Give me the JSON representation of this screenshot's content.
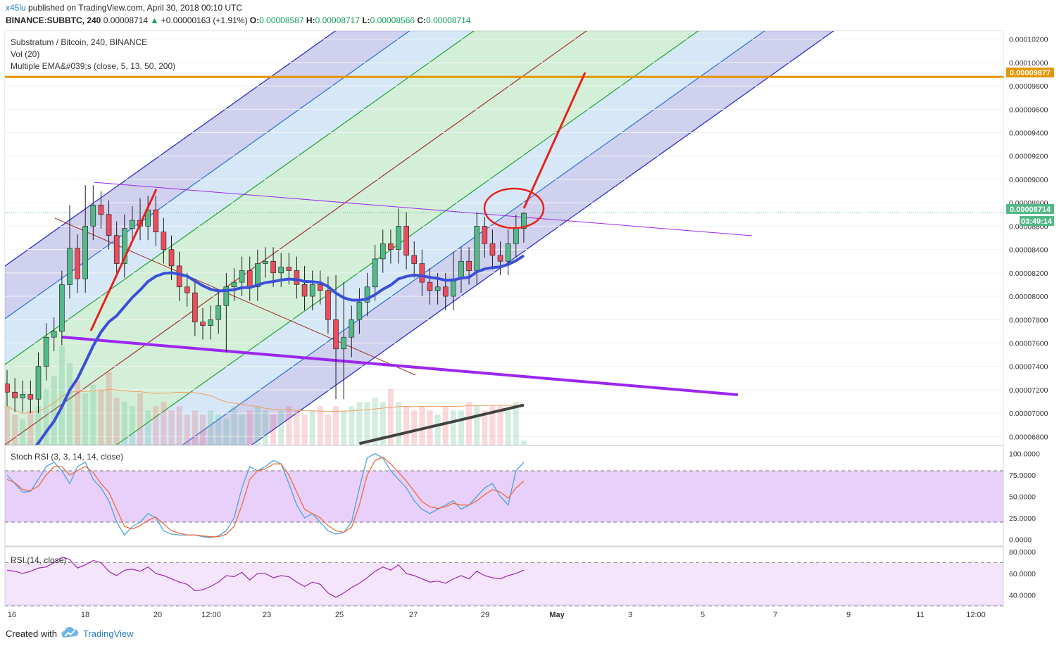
{
  "header": {
    "author": "x45lu",
    "published": "published on TradingView.com, April 30, 2018 00:10 UTC",
    "symbol": "BINANCE:SUBBTC, 240",
    "last": "0.00008714",
    "change": "+0.00000163 (+1.91%)",
    "o_label": "O:",
    "o": "0.00008587",
    "h_label": "H:",
    "h": "0.00008717",
    "l_label": "L:",
    "l": "0.00008566",
    "c_label": "C:",
    "c": "0.00008714"
  },
  "legend": {
    "title": "Substratum / Bitcoin, 240, BINANCE",
    "vol": "Vol (20)",
    "ema": "Multiple EMA&#039;s (close, 5, 13, 50, 200)",
    "stoch": "Stoch RSI (3, 3, 14, 14, close)",
    "rsi": "RSI (14, close)"
  },
  "price_labels": {
    "target": "0.00009877",
    "current": "0.00008714",
    "countdown": "03:49:14"
  },
  "footer": {
    "created": "Created with",
    "brand": "TradingView"
  },
  "colors": {
    "bull": "#53b987",
    "bear": "#eb4d5c",
    "ema": "#3b4fd8",
    "ema200": "#424242",
    "target": "#e69500",
    "annotation": "#e8231b",
    "trend": "#9c27f0"
  },
  "chart_data": [
    {
      "type": "candlestick",
      "title": "Substratum / Bitcoin, 240, BINANCE",
      "x_ticks": [
        "16",
        "18",
        "20",
        "12:00",
        "23",
        "25",
        "27",
        "29",
        "May",
        "3",
        "5",
        "7",
        "9",
        "11",
        "12:00"
      ],
      "y_ticks": [
        "0.00006800",
        "0.00007000",
        "0.00007200",
        "0.00007400",
        "0.00007600",
        "0.00007800",
        "0.00008000",
        "0.00008200",
        "0.00008400",
        "0.00008600",
        "0.00008800",
        "0.00009000",
        "0.00009200",
        "0.00009400",
        "0.00009600",
        "0.00009800",
        "0.00010000",
        "0.00010200"
      ],
      "ylim": [
        6.73e-05,
        0.0001027
      ],
      "closes": [
        7.18e-05,
        7.13e-05,
        7.16e-05,
        7.12e-05,
        7.4e-05,
        7.65e-05,
        7.7e-05,
        8.1e-05,
        8.41e-05,
        8.15e-05,
        8.6e-05,
        8.78e-05,
        8.7e-05,
        8.52e-05,
        8.28e-05,
        8.58e-05,
        8.65e-05,
        8.6e-05,
        8.74e-05,
        8.55e-05,
        8.4e-05,
        8.26e-05,
        8.08e-05,
        8.03e-05,
        7.78e-05,
        7.75e-05,
        7.8e-05,
        7.92e-05,
        8.08e-05,
        8.12e-05,
        8.22e-05,
        8.08e-05,
        8.28e-05,
        8.3e-05,
        8.2e-05,
        8.25e-05,
        8.22e-05,
        8.1e-05,
        8e-05,
        8.1e-05,
        8.05e-05,
        7.8e-05,
        7.55e-05,
        7.65e-05,
        7.8e-05,
        7.95e-05,
        8.08e-05,
        8.32e-05,
        8.45e-05,
        8.4e-05,
        8.6e-05,
        8.35e-05,
        8.28e-05,
        8.12e-05,
        8.05e-05,
        8.08e-05,
        8e-05,
        8.15e-05,
        8.3e-05,
        8.22e-05,
        8.6e-05,
        8.45e-05,
        8.35e-05,
        8.3e-05,
        8.45e-05,
        8.58e-05,
        8.71e-05
      ],
      "highs_extra": {
        "8": 8.78e-05,
        "10": 8.95e-05,
        "11": 8.95e-05,
        "17": 8.84e-05,
        "38": 8.26e-05,
        "42": 8.18e-05,
        "43": 8.12e-05,
        "50": 8.75e-05,
        "57": 8.38e-05,
        "61": 8.68e-05,
        "66": 8.72e-05
      },
      "lows_extra": {
        "42": 7.12e-05,
        "43": 7.12e-05,
        "44": 7.48e-05,
        "28": 7.52e-05
      },
      "open_first": 7.25e-05,
      "volumes": [
        0.9,
        0.7,
        0.6,
        0.8,
        0.9,
        1.3,
        1.6,
        2.3,
        1.9,
        1.5,
        1.2,
        1.4,
        1.3,
        1.7,
        1.1,
        1.0,
        0.9,
        1.2,
        0.8,
        0.9,
        1.0,
        0.8,
        0.9,
        0.7,
        0.8,
        0.7,
        0.8,
        0.7,
        0.6,
        0.9,
        0.7,
        0.8,
        0.9,
        0.8,
        0.7,
        0.8,
        0.9,
        0.8,
        0.7,
        0.8,
        0.9,
        0.7,
        0.9,
        0.8,
        0.9,
        1.0,
        1.0,
        1.1,
        1.0,
        1.3,
        1.0,
        0.9,
        0.8,
        0.9,
        0.8,
        0.7,
        0.9,
        0.8,
        0.8,
        1.0,
        0.9,
        0.8,
        0.9,
        0.9,
        0.8,
        1.0,
        0.1
      ],
      "ema50_end": 8.14e-05,
      "ema200_end": 7.07e-05,
      "target_price": 9.877e-05,
      "current_price": 8.714e-05
    },
    {
      "type": "line",
      "title": "Stoch RSI (3, 3, 14, 14, close)",
      "y_ticks": [
        "100.0000",
        "75.0000",
        "50.0000",
        "25.0000",
        "0.0000"
      ],
      "ylim": [
        -3,
        103
      ],
      "bands": [
        20,
        80
      ],
      "series": [
        {
          "values": [
            75,
            65,
            55,
            56,
            70,
            85,
            90,
            80,
            65,
            85,
            90,
            70,
            60,
            45,
            20,
            5,
            15,
            20,
            30,
            25,
            10,
            6,
            5,
            5,
            5,
            3,
            2,
            4,
            10,
            25,
            60,
            85,
            80,
            85,
            92,
            88,
            65,
            40,
            25,
            30,
            20,
            10,
            6,
            8,
            20,
            60,
            95,
            100,
            95,
            80,
            70,
            60,
            45,
            35,
            30,
            35,
            40,
            45,
            35,
            40,
            50,
            60,
            65,
            50,
            40,
            80,
            90
          ]
        },
        {
          "values": [
            70,
            66,
            58,
            57,
            62,
            75,
            85,
            85,
            75,
            80,
            85,
            78,
            65,
            55,
            35,
            15,
            12,
            16,
            22,
            26,
            18,
            10,
            7,
            5,
            5,
            4,
            3,
            3,
            6,
            15,
            40,
            70,
            80,
            82,
            88,
            88,
            75,
            55,
            35,
            30,
            25,
            16,
            10,
            8,
            14,
            40,
            75,
            92,
            96,
            88,
            78,
            68,
            56,
            44,
            38,
            36,
            38,
            42,
            40,
            40,
            45,
            52,
            58,
            55,
            48,
            60,
            68
          ]
        }
      ]
    },
    {
      "type": "line",
      "title": "RSI (14, close)",
      "y_ticks": [
        "80.0000",
        "60.0000",
        "40.0000"
      ],
      "ylim": [
        32,
        84
      ],
      "bands": [
        30,
        70
      ],
      "series": [
        {
          "values": [
            63,
            62,
            60,
            62,
            65,
            66,
            70,
            75,
            73,
            65,
            68,
            72,
            70,
            62,
            58,
            63,
            64,
            62,
            66,
            60,
            58,
            55,
            52,
            50,
            44,
            45,
            48,
            52,
            58,
            57,
            61,
            54,
            60,
            60,
            56,
            58,
            57,
            52,
            48,
            52,
            50,
            42,
            38,
            42,
            47,
            51,
            56,
            62,
            66,
            63,
            68,
            60,
            58,
            55,
            52,
            53,
            51,
            55,
            58,
            55,
            62,
            58,
            56,
            55,
            58,
            60,
            63
          ]
        }
      ]
    }
  ]
}
